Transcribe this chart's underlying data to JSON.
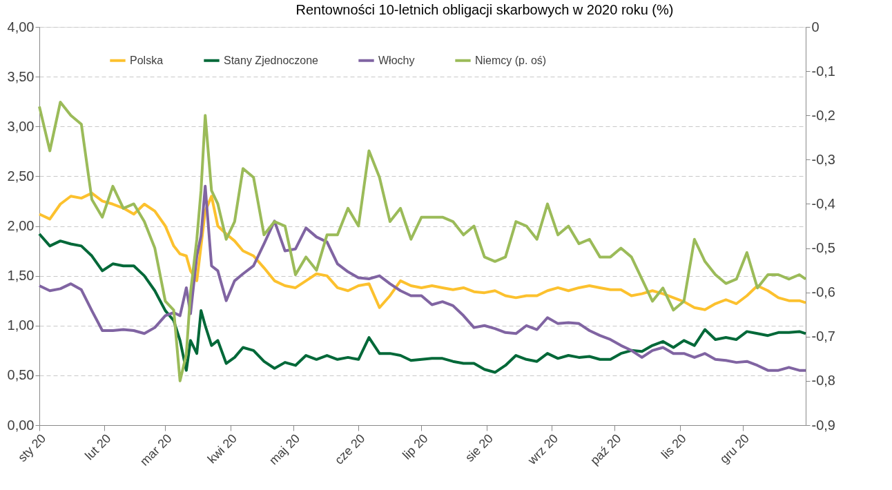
{
  "chart_data": {
    "type": "line",
    "title": "Rentowności 10-letnich obligacji skarbowych w 2020 roku (%)",
    "x": [
      "2020-01-01",
      "2020-01-06",
      "2020-01-11",
      "2020-01-16",
      "2020-01-21",
      "2020-01-26",
      "2020-01-31",
      "2020-02-05",
      "2020-02-10",
      "2020-02-15",
      "2020-02-20",
      "2020-02-25",
      "2020-03-01",
      "2020-03-05",
      "2020-03-08",
      "2020-03-11",
      "2020-03-13",
      "2020-03-16",
      "2020-03-18",
      "2020-03-20",
      "2020-03-23",
      "2020-03-26",
      "2020-03-30",
      "2020-04-03",
      "2020-04-07",
      "2020-04-12",
      "2020-04-17",
      "2020-04-22",
      "2020-04-27",
      "2020-05-02",
      "2020-05-07",
      "2020-05-12",
      "2020-05-17",
      "2020-05-22",
      "2020-05-27",
      "2020-06-01",
      "2020-06-06",
      "2020-06-11",
      "2020-06-16",
      "2020-06-21",
      "2020-06-26",
      "2020-07-01",
      "2020-07-06",
      "2020-07-11",
      "2020-07-16",
      "2020-07-21",
      "2020-07-26",
      "2020-07-31",
      "2020-08-05",
      "2020-08-10",
      "2020-08-15",
      "2020-08-20",
      "2020-08-25",
      "2020-08-30",
      "2020-09-04",
      "2020-09-09",
      "2020-09-14",
      "2020-09-19",
      "2020-09-24",
      "2020-09-29",
      "2020-10-04",
      "2020-10-09",
      "2020-10-14",
      "2020-10-19",
      "2020-10-24",
      "2020-10-29",
      "2020-11-03",
      "2020-11-08",
      "2020-11-13",
      "2020-11-18",
      "2020-11-23",
      "2020-11-28",
      "2020-12-03",
      "2020-12-08",
      "2020-12-13",
      "2020-12-18",
      "2020-12-23",
      "2020-12-28",
      "2020-12-31"
    ],
    "series": [
      {
        "name": "Polska",
        "color": "#fcc12e",
        "values": [
          2.12,
          2.07,
          2.22,
          2.3,
          2.28,
          2.33,
          2.25,
          2.22,
          2.18,
          2.12,
          2.22,
          2.15,
          2.0,
          1.8,
          1.72,
          1.7,
          1.55,
          1.45,
          1.8,
          2.15,
          2.3,
          2.0,
          1.92,
          1.85,
          1.75,
          1.7,
          1.58,
          1.45,
          1.4,
          1.38,
          1.45,
          1.52,
          1.5,
          1.38,
          1.35,
          1.4,
          1.42,
          1.18,
          1.3,
          1.45,
          1.4,
          1.38,
          1.4,
          1.38,
          1.36,
          1.38,
          1.34,
          1.33,
          1.35,
          1.3,
          1.28,
          1.3,
          1.3,
          1.35,
          1.38,
          1.35,
          1.38,
          1.4,
          1.38,
          1.36,
          1.36,
          1.3,
          1.32,
          1.35,
          1.32,
          1.28,
          1.24,
          1.18,
          1.16,
          1.22,
          1.26,
          1.22,
          1.3,
          1.4,
          1.35,
          1.28,
          1.25,
          1.25,
          1.23
        ]
      },
      {
        "name": "Stany Zjednoczone",
        "color": "#006838",
        "values": [
          1.92,
          1.8,
          1.85,
          1.82,
          1.8,
          1.7,
          1.55,
          1.62,
          1.6,
          1.6,
          1.5,
          1.35,
          1.15,
          1.05,
          0.85,
          0.55,
          0.85,
          0.72,
          1.15,
          1.0,
          0.8,
          0.85,
          0.62,
          0.68,
          0.78,
          0.75,
          0.64,
          0.57,
          0.63,
          0.6,
          0.7,
          0.66,
          0.7,
          0.66,
          0.68,
          0.66,
          0.88,
          0.72,
          0.72,
          0.7,
          0.65,
          0.66,
          0.67,
          0.67,
          0.64,
          0.62,
          0.62,
          0.56,
          0.53,
          0.6,
          0.7,
          0.66,
          0.64,
          0.72,
          0.67,
          0.7,
          0.68,
          0.69,
          0.66,
          0.66,
          0.72,
          0.75,
          0.74,
          0.8,
          0.84,
          0.78,
          0.85,
          0.8,
          0.96,
          0.86,
          0.88,
          0.86,
          0.94,
          0.92,
          0.9,
          0.93,
          0.93,
          0.94,
          0.92
        ]
      },
      {
        "name": "Włochy",
        "color": "#8064a2",
        "values": [
          1.4,
          1.35,
          1.37,
          1.42,
          1.36,
          1.15,
          0.95,
          0.95,
          0.96,
          0.95,
          0.92,
          0.98,
          1.1,
          1.13,
          1.1,
          1.38,
          1.12,
          1.7,
          1.9,
          2.4,
          1.6,
          1.55,
          1.25,
          1.45,
          1.52,
          1.6,
          1.82,
          2.05,
          1.75,
          1.77,
          1.98,
          1.89,
          1.84,
          1.62,
          1.54,
          1.48,
          1.47,
          1.5,
          1.42,
          1.35,
          1.3,
          1.3,
          1.21,
          1.24,
          1.2,
          1.1,
          0.98,
          1.0,
          0.97,
          0.93,
          0.92,
          1.0,
          0.96,
          1.08,
          1.02,
          1.03,
          1.02,
          0.95,
          0.9,
          0.86,
          0.8,
          0.75,
          0.68,
          0.75,
          0.78,
          0.72,
          0.72,
          0.68,
          0.72,
          0.66,
          0.65,
          0.63,
          0.64,
          0.6,
          0.55,
          0.55,
          0.58,
          0.55,
          0.55
        ]
      },
      {
        "name": "Niemcy (p. oś)",
        "color": "#9bbb59",
        "axis": "y2",
        "values": [
          -0.18,
          -0.28,
          -0.17,
          -0.2,
          -0.22,
          -0.39,
          -0.43,
          -0.36,
          -0.41,
          -0.4,
          -0.44,
          -0.5,
          -0.62,
          -0.64,
          -0.8,
          -0.74,
          -0.6,
          -0.48,
          -0.37,
          -0.2,
          -0.37,
          -0.4,
          -0.48,
          -0.44,
          -0.32,
          -0.34,
          -0.47,
          -0.44,
          -0.45,
          -0.56,
          -0.52,
          -0.55,
          -0.47,
          -0.47,
          -0.41,
          -0.45,
          -0.28,
          -0.34,
          -0.44,
          -0.41,
          -0.48,
          -0.43,
          -0.43,
          -0.43,
          -0.44,
          -0.47,
          -0.45,
          -0.52,
          -0.53,
          -0.52,
          -0.44,
          -0.45,
          -0.48,
          -0.4,
          -0.47,
          -0.45,
          -0.49,
          -0.48,
          -0.52,
          -0.52,
          -0.5,
          -0.52,
          -0.57,
          -0.62,
          -0.59,
          -0.64,
          -0.62,
          -0.48,
          -0.53,
          -0.56,
          -0.58,
          -0.57,
          -0.51,
          -0.59,
          -0.56,
          -0.56,
          -0.57,
          -0.56,
          -0.57
        ]
      }
    ],
    "xlim": [
      "2020-01-01",
      "2020-12-31"
    ],
    "xticks": [
      {
        "value": "2020-01-01",
        "label": "sty 20"
      },
      {
        "value": "2020-02-01",
        "label": "lut 20"
      },
      {
        "value": "2020-03-01",
        "label": "mar 20"
      },
      {
        "value": "2020-04-01",
        "label": "kwi 20"
      },
      {
        "value": "2020-05-01",
        "label": "maj 20"
      },
      {
        "value": "2020-06-01",
        "label": "cze 20"
      },
      {
        "value": "2020-07-01",
        "label": "lip 20"
      },
      {
        "value": "2020-08-01",
        "label": "sie 20"
      },
      {
        "value": "2020-09-01",
        "label": "wrz 20"
      },
      {
        "value": "2020-10-01",
        "label": "paź 20"
      },
      {
        "value": "2020-11-01",
        "label": "lis 20"
      },
      {
        "value": "2020-12-01",
        "label": "gru 20"
      }
    ],
    "ylim": [
      0,
      4
    ],
    "yticks": [
      {
        "value": 0,
        "label": "0,00"
      },
      {
        "value": 0.5,
        "label": "0,50"
      },
      {
        "value": 1,
        "label": "1,00"
      },
      {
        "value": 1.5,
        "label": "1,50"
      },
      {
        "value": 2,
        "label": "2,00"
      },
      {
        "value": 2.5,
        "label": "2,50"
      },
      {
        "value": 3,
        "label": "3,00"
      },
      {
        "value": 3.5,
        "label": "3,50"
      },
      {
        "value": 4,
        "label": "4,00"
      }
    ],
    "y2lim": [
      -0.9,
      0
    ],
    "y2ticks": [
      {
        "value": -0.9,
        "label": "-0,9"
      },
      {
        "value": -0.8,
        "label": "-0,8"
      },
      {
        "value": -0.7,
        "label": "-0,7"
      },
      {
        "value": -0.6,
        "label": "-0,6"
      },
      {
        "value": -0.5,
        "label": "-0,5"
      },
      {
        "value": -0.4,
        "label": "-0,4"
      },
      {
        "value": -0.3,
        "label": "-0,3"
      },
      {
        "value": -0.2,
        "label": "-0,2"
      },
      {
        "value": -0.1,
        "label": "-0,1"
      },
      {
        "value": 0,
        "label": "0"
      }
    ],
    "grid": "y",
    "legend": "top",
    "line_style": "solid"
  }
}
